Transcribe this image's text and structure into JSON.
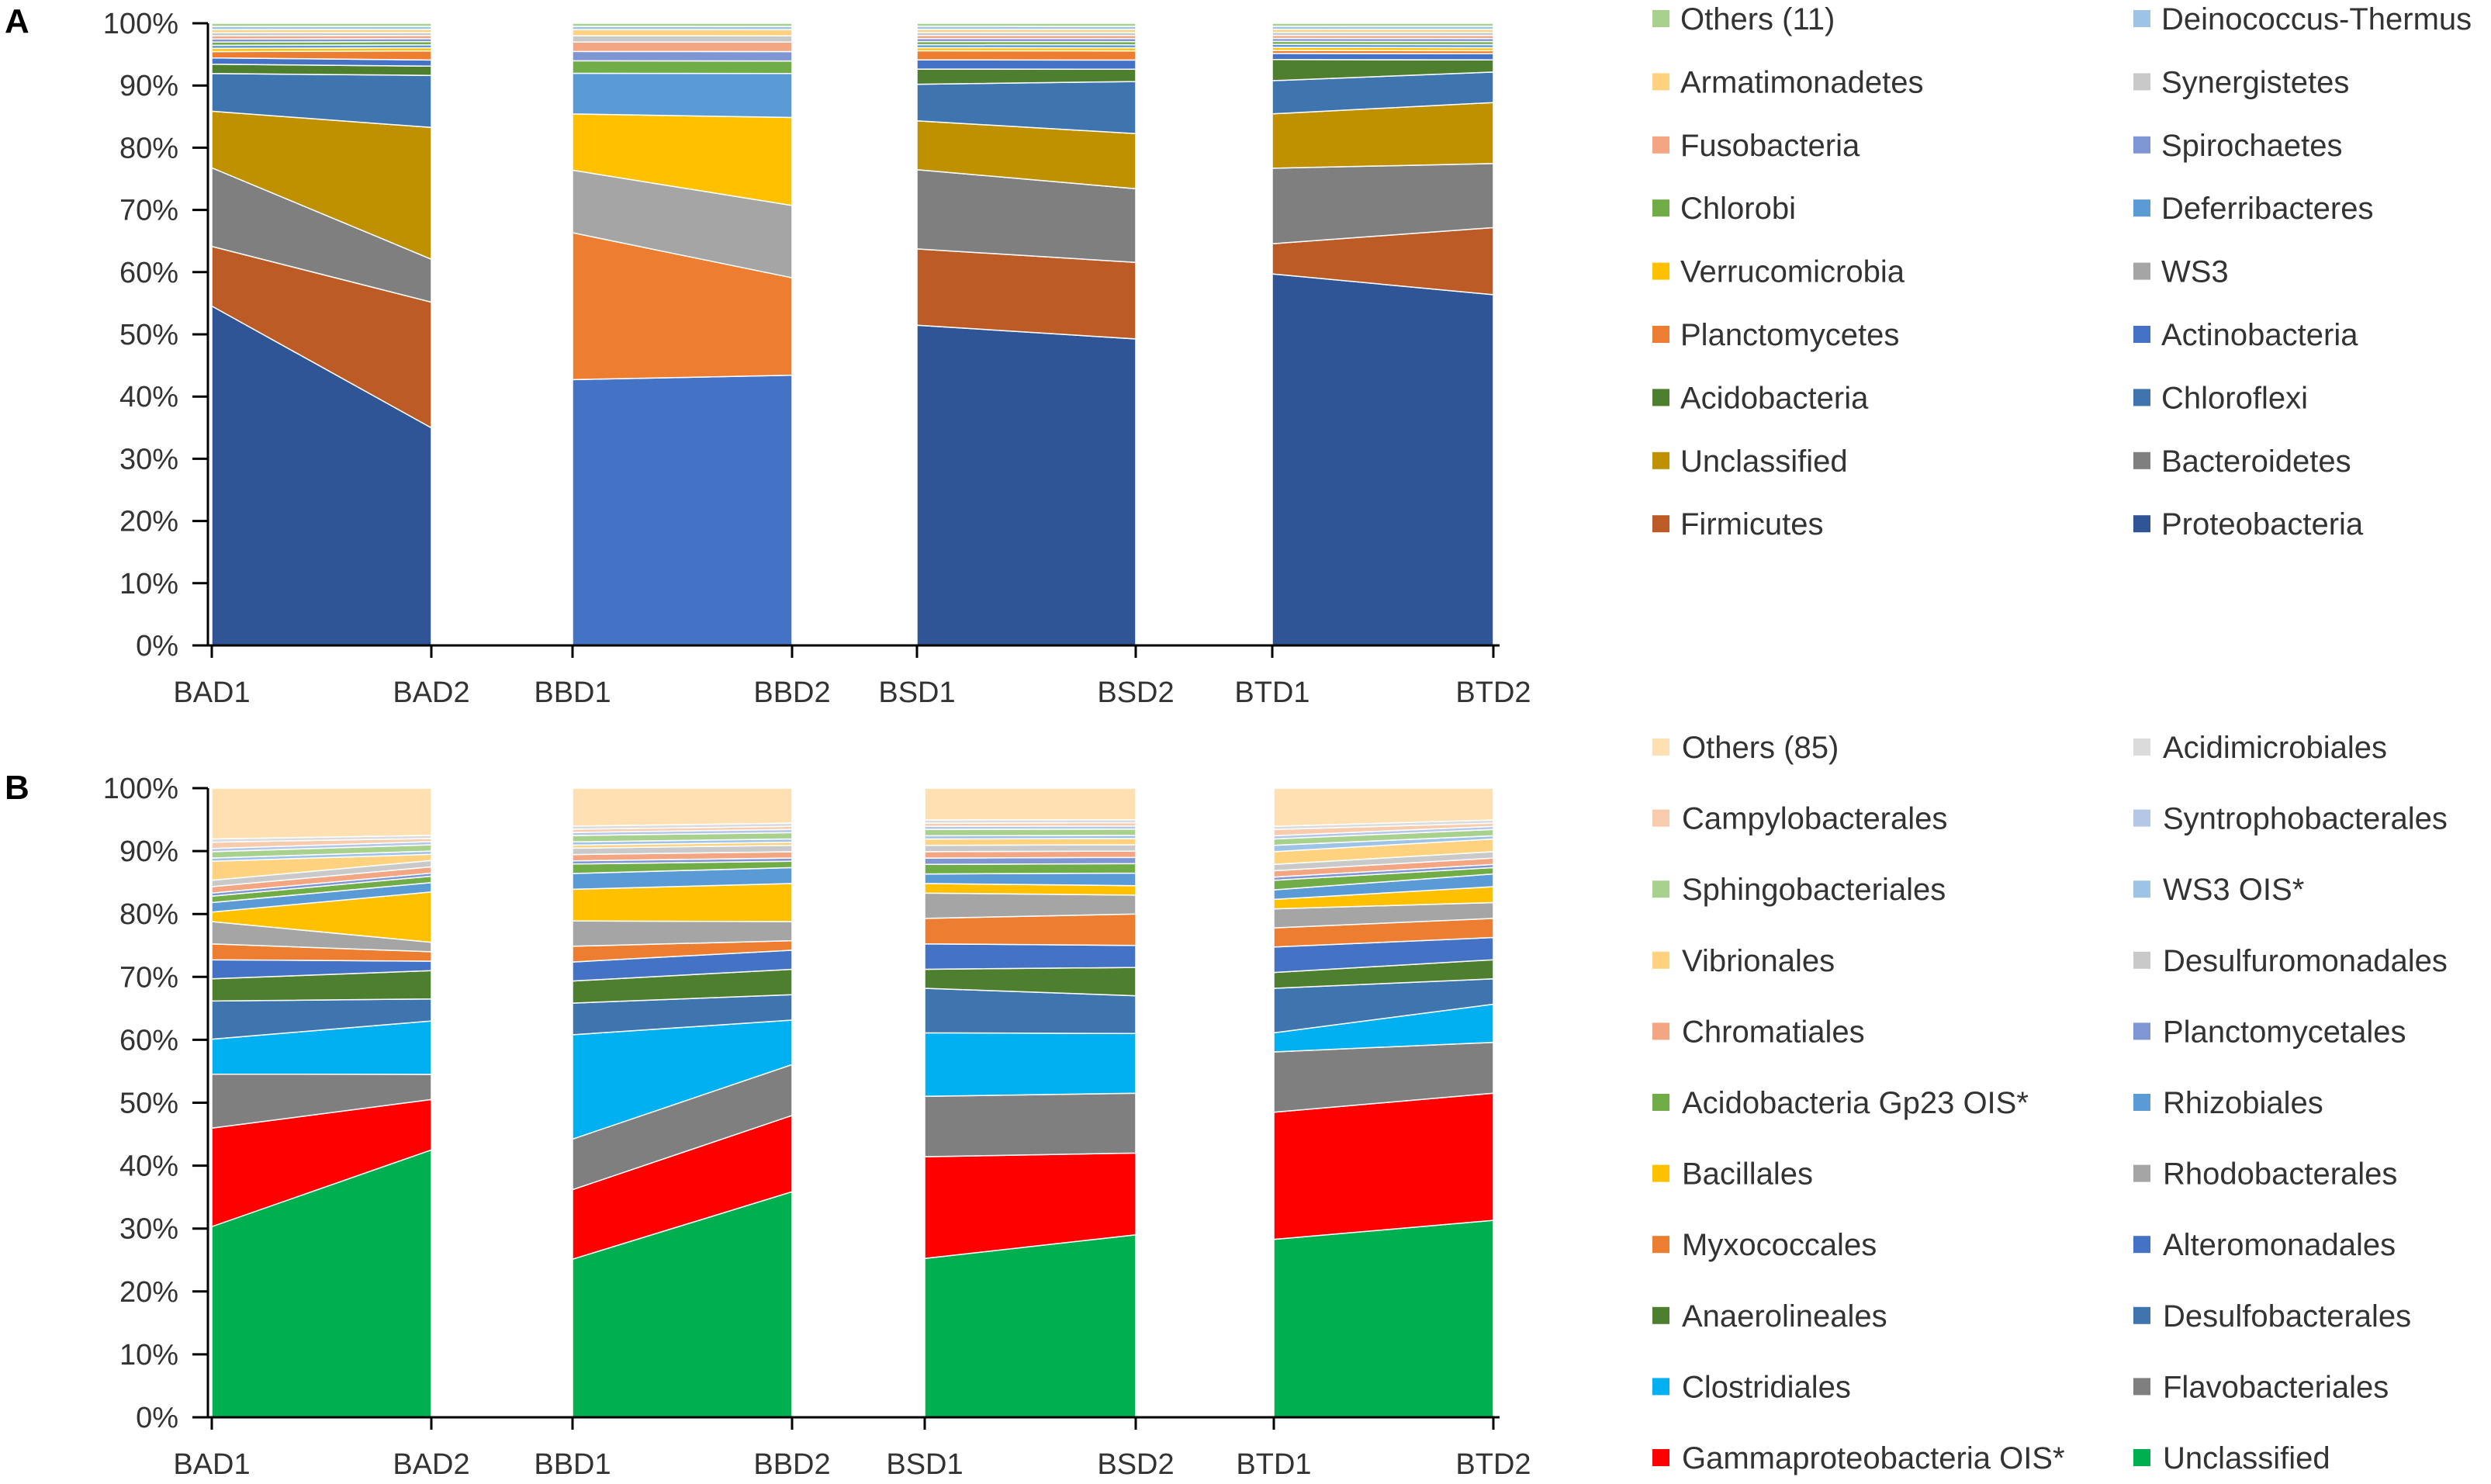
{
  "chart_data": [
    {
      "panel_label": "A",
      "type": "area",
      "stacked": true,
      "percent": true,
      "categories": [
        "BAD1",
        "BAD2",
        "BBD1",
        "BBD2",
        "BSD1",
        "BSD2",
        "BTD1",
        "BTD2"
      ],
      "groups": [
        [
          "BAD1",
          "BAD2"
        ],
        [
          "BBD1",
          "BBD2"
        ],
        [
          "BSD1",
          "BSD2"
        ],
        [
          "BTD1",
          "BTD2"
        ]
      ],
      "ylim": [
        0,
        100
      ],
      "yticks": [
        "0%",
        "10%",
        "20%",
        "30%",
        "40%",
        "50%",
        "60%",
        "70%",
        "80%",
        "90%",
        "100%"
      ],
      "legend_layout": "right, two columns",
      "series": [
        {
          "name": "Proteobacteria",
          "color": "#2F5597",
          "values": [
            54.0,
            35.5,
            0,
            0,
            52.5,
            50.0,
            61.5,
            57.5
          ]
        },
        {
          "name": "Firmicutes",
          "color": "#BD5B26",
          "values": [
            9.5,
            20.5,
            0,
            0,
            12.5,
            12.5,
            5.0,
            11.0
          ]
        },
        {
          "name": "Bacteroidetes",
          "color": "#7F7F7F",
          "values": [
            12.5,
            7.0,
            0,
            0,
            13.0,
            12.0,
            12.5,
            10.5
          ]
        },
        {
          "name": "Unclassified",
          "color": "#BF9000",
          "values": [
            9.0,
            21.5,
            0,
            0,
            8.0,
            9.0,
            9.0,
            10.0
          ]
        },
        {
          "name": "Chloroflexi",
          "color": "#3E75AE",
          "values": [
            6.0,
            8.5,
            0,
            0,
            6.0,
            8.5,
            5.5,
            5.0
          ]
        },
        {
          "name": "Acidobacteria",
          "color": "#4D7F2E",
          "values": [
            1.5,
            1.5,
            0,
            0,
            2.5,
            2.0,
            3.5,
            2.0
          ]
        },
        {
          "name": "Actinobacteria",
          "color": "#4472C4",
          "values": [
            1.0,
            1.0,
            42.5,
            43.0,
            1.5,
            1.5,
            1.0,
            1.0
          ]
        },
        {
          "name": "Planctomycetes",
          "color": "#ED7D31",
          "values": [
            1.0,
            1.5,
            23.5,
            15.5,
            1.5,
            1.5,
            0.5,
            0.5
          ]
        },
        {
          "name": "WS3",
          "color": "#A5A5A5",
          "values": [
            0,
            0,
            10.0,
            11.5,
            0,
            0,
            0,
            0
          ]
        },
        {
          "name": "Verrucomicrobia",
          "color": "#FFC000",
          "values": [
            0.5,
            0.5,
            9.0,
            14.0,
            0.5,
            0.5,
            0.5,
            0.5
          ]
        },
        {
          "name": "Deferribacteres",
          "color": "#5B9BD5",
          "values": [
            0.5,
            0.5,
            6.5,
            7.0,
            0.5,
            0.5,
            0.5,
            0.5
          ]
        },
        {
          "name": "Chlorobi",
          "color": "#70AD47",
          "values": [
            0.5,
            0.5,
            2.0,
            2.0,
            0.5,
            0.5,
            0.5,
            0.5
          ]
        },
        {
          "name": "Spirochaetes",
          "color": "#7F96D4",
          "values": [
            0.5,
            0.5,
            1.5,
            1.5,
            0.5,
            0.5,
            0.5,
            0.5
          ]
        },
        {
          "name": "Fusobacteria",
          "color": "#F4A582",
          "values": [
            0.5,
            0.5,
            1.5,
            1.5,
            0.5,
            0.5,
            0.5,
            0.5
          ]
        },
        {
          "name": "Synergistetes",
          "color": "#C9C9C9",
          "values": [
            0.5,
            0.5,
            1.0,
            1.0,
            0.5,
            0.5,
            0.5,
            0.5
          ]
        },
        {
          "name": "Armatimonadetes",
          "color": "#FFD27F",
          "values": [
            0.5,
            0.5,
            1.0,
            1.0,
            0.5,
            0.5,
            0.5,
            0.5
          ]
        },
        {
          "name": "Deinococcus-Thermus",
          "color": "#9DC3E6",
          "values": [
            0.5,
            0.5,
            0.5,
            0.5,
            0.5,
            0.5,
            0.5,
            0.5
          ]
        },
        {
          "name": "Others (11)",
          "color": "#A9D18E",
          "values": [
            0.5,
            0.5,
            0.5,
            0.5,
            0.5,
            0.5,
            0.5,
            0.5
          ]
        }
      ],
      "legend_left_column": [
        "Others (11)",
        "Armatimonadetes",
        "Fusobacteria",
        "Chlorobi",
        "Verrucomicrobia",
        "Planctomycetes",
        "Acidobacteria",
        "Unclassified",
        "Firmicutes"
      ],
      "legend_right_column": [
        "Deinococcus-Thermus",
        "Synergistetes",
        "Spirochaetes",
        "Deferribacteres",
        "WS3",
        "Actinobacteria",
        "Chloroflexi",
        "Bacteroidetes",
        "Proteobacteria"
      ]
    },
    {
      "panel_label": "B",
      "type": "area",
      "stacked": true,
      "percent": true,
      "categories": [
        "BAD1",
        "BAD2",
        "BBD1",
        "BBD2",
        "BSD1",
        "BSD2",
        "BTD1",
        "BTD2"
      ],
      "groups": [
        [
          "BAD1",
          "BAD2"
        ],
        [
          "BBD1",
          "BBD2"
        ],
        [
          "BSD1",
          "BSD2"
        ],
        [
          "BTD1",
          "BTD2"
        ]
      ],
      "ylim": [
        0,
        100
      ],
      "yticks": [
        "0%",
        "10%",
        "20%",
        "30%",
        "40%",
        "50%",
        "60%",
        "70%",
        "80%",
        "90%",
        "100%"
      ],
      "legend_layout": "right, two columns",
      "series": [
        {
          "name": "Unclassified",
          "color": "#00B050",
          "values": [
            30.0,
            42.5,
            25.0,
            35.5,
            25.0,
            29.0,
            28.0,
            31.0
          ]
        },
        {
          "name": "Gammaproteobacteria OIS*",
          "color": "#FF0000",
          "values": [
            15.5,
            8.0,
            11.0,
            12.0,
            16.0,
            13.0,
            20.0,
            20.0
          ]
        },
        {
          "name": "Flavobacteriales",
          "color": "#7F7F7F",
          "values": [
            8.5,
            4.0,
            8.0,
            8.0,
            9.5,
            9.5,
            9.5,
            8.0
          ]
        },
        {
          "name": "Clostridiales",
          "color": "#00B0F0",
          "values": [
            5.5,
            8.5,
            16.5,
            7.0,
            10.0,
            9.5,
            3.0,
            6.0
          ]
        },
        {
          "name": "Desulfobacterales",
          "color": "#3E75AE",
          "values": [
            6.0,
            3.5,
            5.0,
            4.0,
            7.0,
            6.0,
            7.0,
            4.0
          ]
        },
        {
          "name": "Anaerolineales",
          "color": "#4D7F2E",
          "values": [
            3.5,
            4.5,
            3.5,
            4.0,
            3.0,
            4.5,
            2.5,
            3.0
          ]
        },
        {
          "name": "Alteromonadales",
          "color": "#4472C4",
          "values": [
            3.0,
            1.5,
            3.0,
            3.0,
            4.0,
            3.5,
            4.0,
            3.5
          ]
        },
        {
          "name": "Myxococcales",
          "color": "#ED7D31",
          "values": [
            2.5,
            1.5,
            2.5,
            1.5,
            4.0,
            5.0,
            3.0,
            3.0
          ]
        },
        {
          "name": "Rhodobacterales",
          "color": "#A5A5A5",
          "values": [
            3.5,
            1.5,
            4.0,
            3.0,
            4.0,
            3.0,
            3.0,
            2.5
          ]
        },
        {
          "name": "Bacillales",
          "color": "#FFC000",
          "values": [
            1.5,
            8.0,
            5.0,
            6.0,
            1.5,
            1.5,
            1.5,
            2.5
          ]
        },
        {
          "name": "Rhizobiales",
          "color": "#5B9BD5",
          "values": [
            1.5,
            1.5,
            2.5,
            2.5,
            1.5,
            2.0,
            1.5,
            2.0
          ]
        },
        {
          "name": "Acidobacteria Gp23 OIS*",
          "color": "#70AD47",
          "values": [
            1.0,
            1.0,
            1.5,
            1.0,
            1.5,
            1.5,
            1.5,
            1.0
          ]
        },
        {
          "name": "Planctomycetales",
          "color": "#7F96D4",
          "values": [
            0.5,
            0.5,
            0.5,
            0.5,
            1.0,
            1.0,
            0.5,
            0.5
          ]
        },
        {
          "name": "Chromatiales",
          "color": "#F4A582",
          "values": [
            1.0,
            1.0,
            1.0,
            1.0,
            1.0,
            1.0,
            1.0,
            1.0
          ]
        },
        {
          "name": "Desulfuromonadales",
          "color": "#C9C9C9",
          "values": [
            1.0,
            1.0,
            1.0,
            1.0,
            1.0,
            1.0,
            1.0,
            1.0
          ]
        },
        {
          "name": "Vibrionales",
          "color": "#FFD27F",
          "values": [
            3.0,
            1.0,
            0.5,
            0.5,
            1.0,
            1.0,
            2.0,
            2.0
          ]
        },
        {
          "name": "WS3 OIS*",
          "color": "#9DC3E6",
          "values": [
            0.5,
            0.5,
            0.5,
            0.5,
            0.5,
            0.5,
            1.0,
            0.5
          ]
        },
        {
          "name": "Sphingobacteriales",
          "color": "#A9D18E",
          "values": [
            1.0,
            1.0,
            1.0,
            1.0,
            1.0,
            1.0,
            1.0,
            1.0
          ]
        },
        {
          "name": "Syntrophobacterales",
          "color": "#B4C7E7",
          "values": [
            0.5,
            0.5,
            0.5,
            0.5,
            0.5,
            0.5,
            0.5,
            0.5
          ]
        },
        {
          "name": "Campylobacterales",
          "color": "#F8CBAD",
          "values": [
            1.0,
            0.5,
            0.5,
            0.5,
            0.5,
            0.5,
            1.0,
            0.5
          ]
        },
        {
          "name": "Acidimicrobiales",
          "color": "#DBDBDB",
          "values": [
            0.5,
            0.5,
            0.5,
            0.5,
            0.5,
            0.5,
            0.5,
            0.5
          ]
        },
        {
          "name": "Others (85)",
          "color": "#FFE0B2",
          "values": [
            8.0,
            7.5,
            6.0,
            5.5,
            5.0,
            5.0,
            6.0,
            5.0
          ]
        }
      ],
      "legend_left_column": [
        "Others (85)",
        "Campylobacterales",
        "Sphingobacteriales",
        "Vibrionales",
        "Chromatiales",
        "Acidobacteria Gp23 OIS*",
        "Bacillales",
        "Myxococcales",
        "Anaerolineales",
        "Clostridiales",
        "Gammaproteobacteria OIS*"
      ],
      "legend_right_column": [
        "Acidimicrobiales",
        "Syntrophobacterales",
        "WS3 OIS*",
        "Desulfuromonadales",
        "Planctomycetales",
        "Rhizobiales",
        "Rhodobacterales",
        "Alteromonadales",
        "Desulfobacterales",
        "Flavobacteriales",
        "Unclassified"
      ]
    }
  ]
}
